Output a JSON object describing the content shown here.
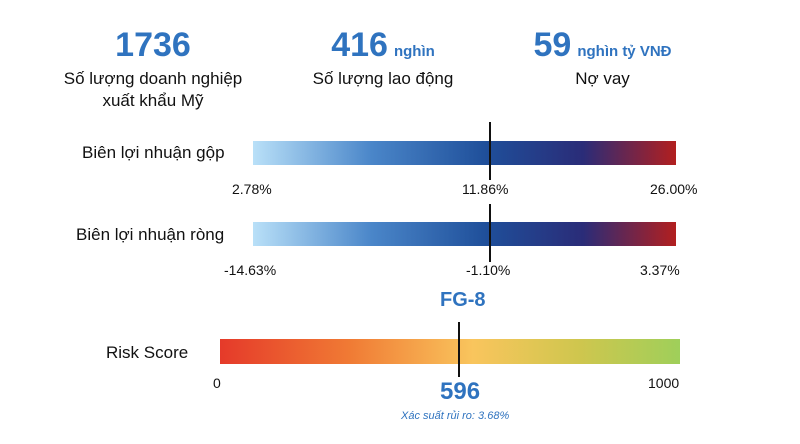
{
  "stats": [
    {
      "value": "1736",
      "unit": "",
      "label_line1": "Số lượng doanh nghiệp",
      "label_line2": "xuất khẩu Mỹ"
    },
    {
      "value": "416",
      "unit": "nghìn",
      "label_line1": "Số lượng lao động",
      "label_line2": ""
    },
    {
      "value": "59",
      "unit": "nghìn tỷ VNĐ",
      "label_line1": "Nợ vay",
      "label_line2": ""
    }
  ],
  "chart_data": [
    {
      "type": "bar",
      "title": "Biên lợi nhuận gộp",
      "min_label": "2.78%",
      "marker_label": "11.86%",
      "max_label": "26.00%",
      "min": 2.78,
      "marker": 11.86,
      "max": 26.0,
      "marker_fraction": 0.56
    },
    {
      "type": "bar",
      "title": "Biên lợi nhuận ròng",
      "min_label": "-14.63%",
      "marker_label": "-1.10%",
      "max_label": "3.37%",
      "min": -14.63,
      "marker": -1.1,
      "max": 3.37,
      "marker_fraction": 0.56
    },
    {
      "type": "bar",
      "title": "Risk Score",
      "min_label": "0",
      "marker_label": "596",
      "max_label": "1000",
      "min": 0,
      "marker": 596,
      "max": 1000,
      "marker_fraction": 0.52,
      "rating": "FG-8",
      "probability_text": "Xác suất rủi ro: 3.68%"
    }
  ],
  "colors": {
    "accent": "#2f73bf",
    "blue_bar_start": "#b9e0f8",
    "blue_bar_mid": "#1f4f9a",
    "blue_bar_end": "#b21f1f",
    "risk_bar_start": "#e53a2a",
    "risk_bar_mid": "#f9c55d",
    "risk_bar_end": "#9fcf5a"
  }
}
